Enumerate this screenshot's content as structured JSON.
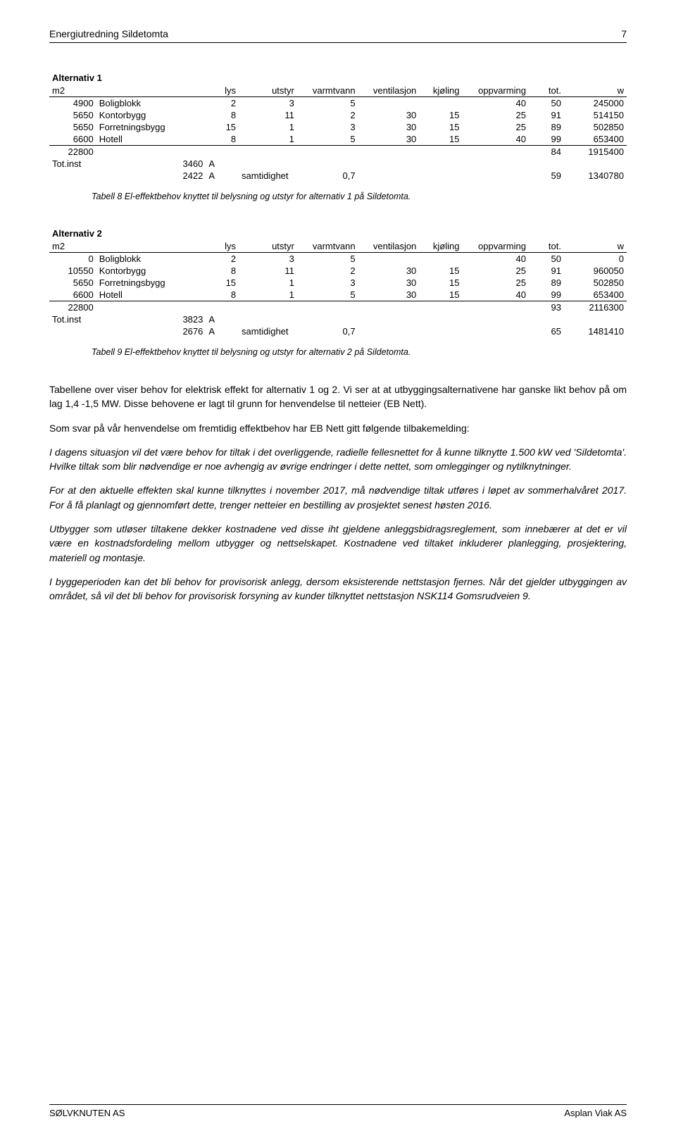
{
  "header": {
    "title": "Energiutredning Sildetomta",
    "page": "7"
  },
  "table1": {
    "title": "Alternativ 1",
    "columns": [
      "m2",
      "",
      "lys",
      "utstyr",
      "varmtvann",
      "ventilasjon",
      "kjøling",
      "oppvarming",
      "tot.",
      "w"
    ],
    "rows": [
      [
        "4900",
        "Boligblokk",
        "2",
        "3",
        "5",
        "",
        "",
        "40",
        "50",
        "245000"
      ],
      [
        "5650",
        "Kontorbygg",
        "8",
        "11",
        "2",
        "30",
        "15",
        "25",
        "91",
        "514150"
      ],
      [
        "5650",
        "Forretningsbygg",
        "15",
        "1",
        "3",
        "30",
        "15",
        "25",
        "89",
        "502850"
      ],
      [
        "6600",
        "Hotell",
        "8",
        "1",
        "5",
        "30",
        "15",
        "40",
        "99",
        "653400"
      ]
    ],
    "sum_row": [
      "22800",
      "",
      "",
      "",
      "",
      "",
      "",
      "",
      "84",
      "1915400"
    ],
    "tot_row1": [
      "Tot.inst",
      "3460",
      "A",
      "",
      "",
      "",
      "",
      "",
      "",
      ""
    ],
    "tot_row2": [
      "",
      "2422",
      "A",
      "samtidighet",
      "0,7",
      "",
      "",
      "",
      "59",
      "1340780"
    ]
  },
  "caption1": "Tabell 8 El-effektbehov knyttet til belysning og utstyr for  alternativ 1 på Sildetomta.",
  "table2": {
    "title": "Alternativ 2",
    "columns": [
      "m2",
      "",
      "lys",
      "utstyr",
      "varmtvann",
      "ventilasjon",
      "kjøling",
      "oppvarming",
      "tot.",
      "w"
    ],
    "rows": [
      [
        "0",
        "Boligblokk",
        "2",
        "3",
        "5",
        "",
        "",
        "40",
        "50",
        "0"
      ],
      [
        "10550",
        "Kontorbygg",
        "8",
        "11",
        "2",
        "30",
        "15",
        "25",
        "91",
        "960050"
      ],
      [
        "5650",
        "Forretningsbygg",
        "15",
        "1",
        "3",
        "30",
        "15",
        "25",
        "89",
        "502850"
      ],
      [
        "6600",
        "Hotell",
        "8",
        "1",
        "5",
        "30",
        "15",
        "40",
        "99",
        "653400"
      ]
    ],
    "sum_row": [
      "22800",
      "",
      "",
      "",
      "",
      "",
      "",
      "",
      "93",
      "2116300"
    ],
    "tot_row1": [
      "Tot.inst",
      "3823",
      "A",
      "",
      "",
      "",
      "",
      "",
      "",
      ""
    ],
    "tot_row2": [
      "",
      "2676",
      "A",
      "samtidighet",
      "0,7",
      "",
      "",
      "",
      "65",
      "1481410"
    ]
  },
  "caption2": "Tabell 9 El-effektbehov knyttet til belysning og utstyr for  alternativ 2 på Sildetomta.",
  "paragraphs": [
    {
      "italic": false,
      "text": "Tabellene over viser behov for elektrisk effekt for alternativ 1 og 2. Vi ser at at utbyggingsalternativene har ganske likt behov på om lag 1,4 -1,5 MW. Disse behovene er lagt til grunn for henvendelse til netteier (EB Nett)."
    },
    {
      "italic": false,
      "text": "Som svar på vår henvendelse om fremtidig effektbehov har EB Nett gitt følgende tilbakemelding:"
    },
    {
      "italic": true,
      "text": "I dagens situasjon vil det være behov for tiltak i det overliggende, radielle fellesnettet for å kunne tilknytte 1.500 kW ved 'Sildetomta'. Hvilke tiltak som blir nødvendige er noe avhengig av øvrige endringer i dette nettet, som omlegginger og nytilknytninger."
    },
    {
      "italic": true,
      "text": "For at den aktuelle effekten skal kunne tilknyttes i november 2017, må nødvendige tiltak utføres i løpet av sommerhalvåret 2017. For å få planlagt og gjennomført dette, trenger netteier en bestilling av prosjektet senest høsten 2016."
    },
    {
      "italic": true,
      "text": "Utbygger som utløser tiltakene dekker kostnadene ved disse iht gjeldene anleggsbidragsreglement, som innebærer at det er vil være en kostnadsfordeling mellom utbygger og nettselskapet. Kostnadene ved tiltaket inkluderer planlegging, prosjektering, materiell og montasje."
    },
    {
      "italic": true,
      "text": "I byggeperioden kan det bli behov for provisorisk anlegg, dersom eksisterende nettstasjon fjernes. Når det gjelder utbyggingen av området, så vil det bli behov for provisorisk forsyning av kunder tilknyttet nettstasjon NSK114 Gomsrudveien 9."
    }
  ],
  "footer": {
    "left": "SØLVKNUTEN AS",
    "right": "Asplan Viak AS"
  }
}
